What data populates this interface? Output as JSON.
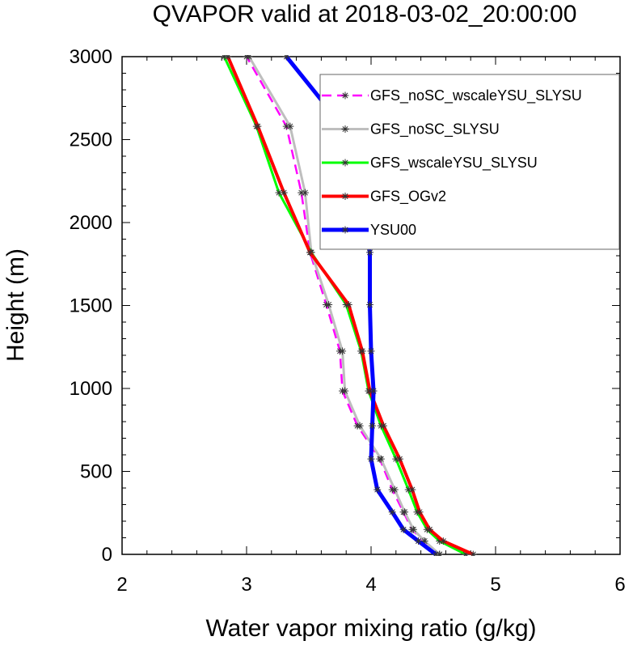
{
  "chart_data": {
    "type": "line",
    "title": "QVAPOR valid at 2018-03-02_20:00:00",
    "xlabel": "Water vapor mixing ratio (g/kg)",
    "ylabel": "Height (m)",
    "xlim": [
      2,
      6
    ],
    "ylim": [
      0,
      3000
    ],
    "xticks": [
      2,
      3,
      4,
      5,
      6
    ],
    "yticks": [
      0,
      500,
      1000,
      1500,
      2000,
      2500,
      3000
    ],
    "xtick_labels": [
      "2",
      "3",
      "4",
      "5",
      "6"
    ],
    "ytick_labels": [
      "0",
      "500",
      "1000",
      "1500",
      "2000",
      "2500",
      "3000"
    ],
    "grid": false,
    "legend_position": "top-right",
    "series": [
      {
        "name": "GFS_noSC_wscaleYSU_SLYSU",
        "color": "#ff00ff",
        "dash": "dashed",
        "width": 2.5,
        "points": [
          [
            4.55,
            0
          ],
          [
            4.42,
            80
          ],
          [
            4.33,
            150
          ],
          [
            4.26,
            255
          ],
          [
            4.17,
            390
          ],
          [
            4.07,
            575
          ],
          [
            3.89,
            775
          ],
          [
            3.77,
            985
          ],
          [
            3.75,
            1225
          ],
          [
            3.64,
            1505
          ],
          [
            3.51,
            1820
          ],
          [
            3.44,
            2180
          ],
          [
            3.32,
            2580
          ],
          [
            3.0,
            3000
          ]
        ]
      },
      {
        "name": "GFS_noSC_SLYSU",
        "color": "#bebebe",
        "dash": "solid",
        "width": 3,
        "points": [
          [
            4.55,
            0
          ],
          [
            4.43,
            80
          ],
          [
            4.34,
            150
          ],
          [
            4.27,
            255
          ],
          [
            4.19,
            390
          ],
          [
            4.08,
            575
          ],
          [
            3.91,
            775
          ],
          [
            3.79,
            985
          ],
          [
            3.77,
            1225
          ],
          [
            3.66,
            1505
          ],
          [
            3.52,
            1820
          ],
          [
            3.47,
            2180
          ],
          [
            3.35,
            2580
          ],
          [
            3.02,
            3000
          ]
        ]
      },
      {
        "name": "GFS_wscaleYSU_SLYSU",
        "color": "#00ff00",
        "dash": "solid",
        "width": 3,
        "points": [
          [
            4.76,
            0
          ],
          [
            4.55,
            80
          ],
          [
            4.45,
            150
          ],
          [
            4.37,
            255
          ],
          [
            4.3,
            390
          ],
          [
            4.2,
            575
          ],
          [
            4.08,
            775
          ],
          [
            3.98,
            985
          ],
          [
            3.92,
            1225
          ],
          [
            3.8,
            1505
          ],
          [
            3.52,
            1820
          ],
          [
            3.26,
            2180
          ],
          [
            3.08,
            2580
          ],
          [
            2.82,
            3000
          ]
        ]
      },
      {
        "name": "GFS_OGv2",
        "color": "#ff0000",
        "dash": "solid",
        "width": 4,
        "points": [
          [
            4.82,
            0
          ],
          [
            4.58,
            80
          ],
          [
            4.47,
            150
          ],
          [
            4.39,
            255
          ],
          [
            4.33,
            390
          ],
          [
            4.23,
            575
          ],
          [
            4.1,
            775
          ],
          [
            3.99,
            985
          ],
          [
            3.93,
            1225
          ],
          [
            3.82,
            1505
          ],
          [
            3.51,
            1820
          ],
          [
            3.3,
            2180
          ],
          [
            3.09,
            2580
          ],
          [
            2.85,
            3000
          ]
        ]
      },
      {
        "name": "YSU00",
        "color": "#0000ff",
        "dash": "solid",
        "width": 5,
        "points": [
          [
            4.52,
            0
          ],
          [
            4.38,
            80
          ],
          [
            4.26,
            150
          ],
          [
            4.17,
            255
          ],
          [
            4.05,
            390
          ],
          [
            4.0,
            575
          ],
          [
            4.01,
            775
          ],
          [
            4.02,
            985
          ],
          [
            4.0,
            1225
          ],
          [
            3.99,
            1505
          ],
          [
            3.99,
            1820
          ],
          [
            3.9,
            2180
          ],
          [
            3.77,
            2580
          ],
          [
            3.32,
            3000
          ]
        ]
      }
    ]
  }
}
